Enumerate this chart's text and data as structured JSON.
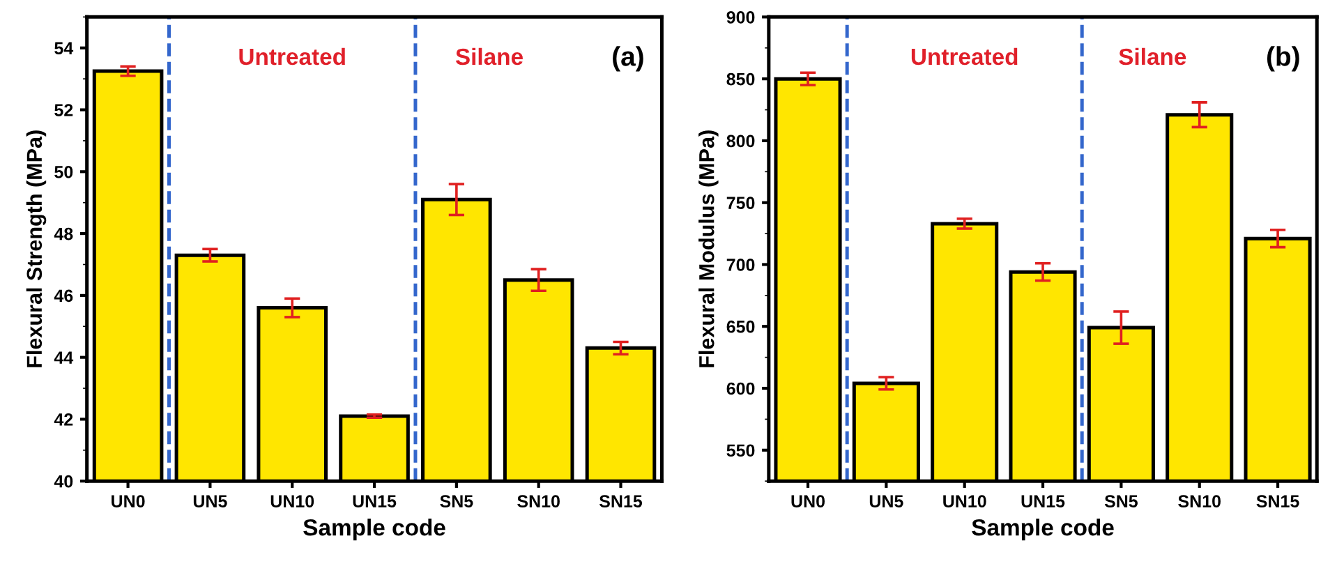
{
  "chart_data": [
    {
      "type": "bar",
      "xlabel": "Sample code",
      "ylabel": "Flexural Strength (MPa)",
      "categories": [
        "UN0",
        "UN5",
        "UN10",
        "UN15",
        "SN5",
        "SN10",
        "SN15"
      ],
      "series": [
        {
          "color": "#ffe600",
          "values": [
            53.25,
            47.3,
            45.6,
            42.1,
            49.1,
            46.5,
            44.3
          ],
          "errors": [
            0.15,
            0.2,
            0.3,
            0.05,
            0.5,
            0.35,
            0.2
          ]
        }
      ],
      "ylim": [
        40,
        55
      ],
      "yticks": [
        40,
        42,
        44,
        46,
        48,
        50,
        52,
        54
      ],
      "annotations": [
        "Untreated",
        "Silane",
        "(a)"
      ],
      "grid": false,
      "legend": false
    },
    {
      "type": "bar",
      "xlabel": "Sample code",
      "ylabel": "Flexural Modulus (MPa)",
      "categories": [
        "UN0",
        "UN5",
        "UN10",
        "UN15",
        "SN5",
        "SN10",
        "SN15"
      ],
      "series": [
        {
          "color": "#ffe600",
          "values": [
            850,
            604,
            733,
            694,
            649,
            821,
            721
          ],
          "errors": [
            5,
            5,
            4,
            7,
            13,
            10,
            7
          ]
        }
      ],
      "ylim": [
        525,
        900
      ],
      "yticks": [
        550,
        600,
        650,
        700,
        750,
        800,
        850,
        900
      ],
      "annotations": [
        "Untreated",
        "Silane",
        "(b)"
      ],
      "grid": false,
      "legend": false
    }
  ]
}
